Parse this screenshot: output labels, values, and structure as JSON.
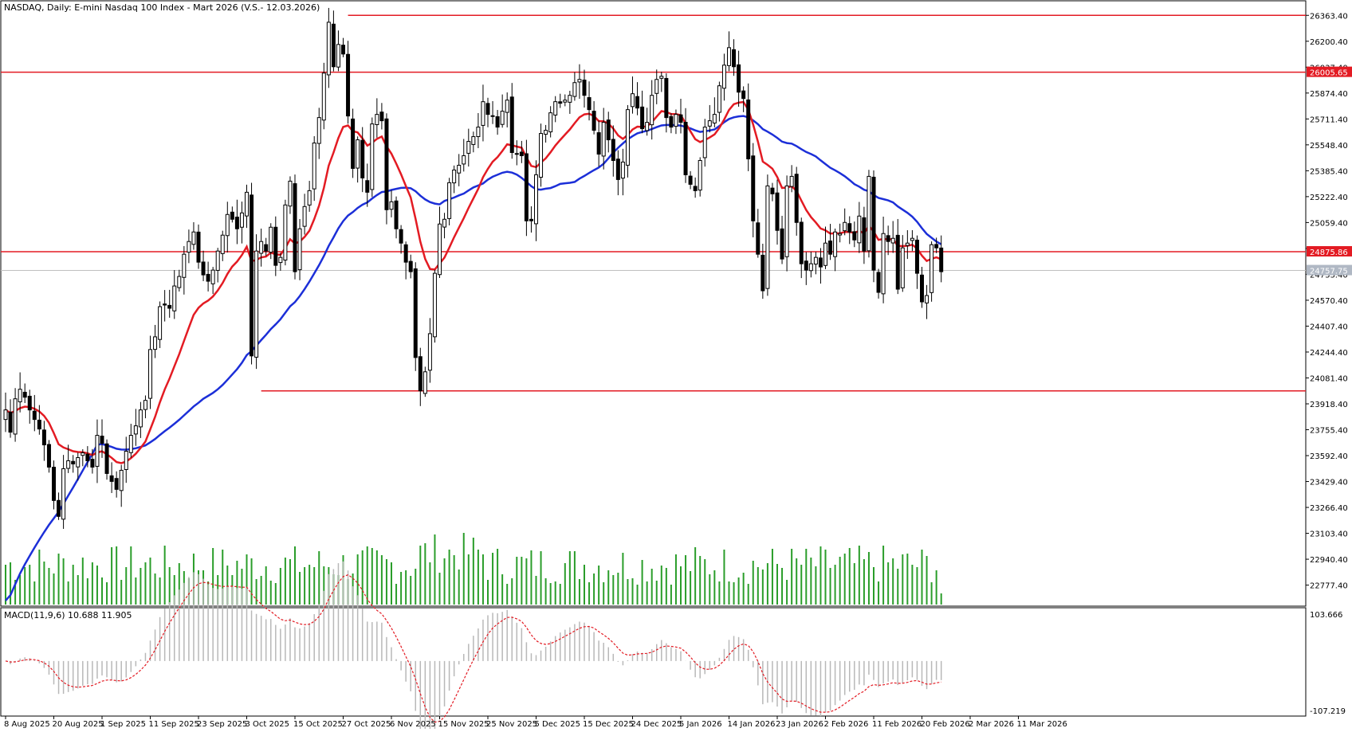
{
  "chart_data": {
    "type": "candlestick",
    "title": "NASDAQ, Daily:  E-mini Nasdaq 100 Index - Mart 2026 (V.S.- 12.03.2026)",
    "price_axis": {
      "range": [
        22650,
        26450
      ],
      "ticks": [
        "26363.40",
        "26200.40",
        "26037.40",
        "25874.40",
        "25711.40",
        "25548.40",
        "25385.40",
        "25222.40",
        "25059.40",
        "24896.40",
        "24733.40",
        "24570.40",
        "24407.40",
        "24244.40",
        "24081.40",
        "23918.40",
        "23755.40",
        "23592.40",
        "23429.40",
        "23266.40",
        "23103.40",
        "22940.40",
        "22777.40"
      ],
      "labels": [
        {
          "text": "26005.65",
          "value": 26005.65,
          "color": "#e31b23"
        },
        {
          "text": "24875.86",
          "value": 24875.86,
          "color": "#e31b23"
        },
        {
          "text": "24757.75",
          "value": 24757.75,
          "color": "#b0b8c4"
        }
      ]
    },
    "levels": [
      {
        "value": 26363.4,
        "from": "28 Oct 2025",
        "color": "#e31b23"
      },
      {
        "value": 26005.65,
        "from": "8 Aug 2025",
        "color": "#e31b23"
      },
      {
        "value": 24875.86,
        "from": "8 Aug 2025",
        "color": "#e31b23"
      },
      {
        "value": 24000,
        "from": "9 Oct 2025",
        "color": "#e31b23"
      },
      {
        "value": 24757.75,
        "from": "8 Aug 2025",
        "color": "#c0c0c0"
      }
    ],
    "date_ticks": [
      "8 Aug 2025",
      "20 Aug 2025",
      "1 Sep 2025",
      "11 Sep 2025",
      "23 Sep 2025",
      "3 Oct 2025",
      "15 Oct 2025",
      "27 Oct 2025",
      "6 Nov 2025",
      "15 Nov 2025",
      "25 Nov 2025",
      "5 Dec 2025",
      "15 Dec 2025",
      "24 Dec 2025",
      "5 Jan 2026",
      "14 Jan 2026",
      "23 Jan 2026",
      "2 Feb 2026",
      "11 Feb 2026",
      "20 Feb 2026",
      "2 Mar 2026",
      "11 Mar 2026"
    ],
    "date_tick_bar_index": [
      0,
      10,
      20,
      30,
      40,
      50,
      60,
      70,
      80,
      90,
      100,
      110,
      120,
      130,
      140,
      150,
      160,
      170,
      180,
      190,
      200,
      210
    ],
    "closes": [
      23880,
      23740,
      23950,
      24010,
      23960,
      23880,
      23820,
      23760,
      23660,
      23520,
      23310,
      23210,
      23510,
      23560,
      23540,
      23580,
      23610,
      23560,
      23520,
      23720,
      23670,
      23480,
      23430,
      23380,
      23500,
      23620,
      23720,
      23780,
      23880,
      23940,
      24260,
      24340,
      24530,
      24540,
      24520,
      24660,
      24720,
      24860,
      24940,
      25000,
      24810,
      24730,
      24690,
      24760,
      24880,
      24980,
      25110,
      25080,
      25020,
      25120,
      25250,
      24220,
      24880,
      24940,
      24880,
      25030,
      24790,
      24840,
      25170,
      25320,
      24750,
      25020,
      25160,
      25260,
      25560,
      25720,
      26000,
      26320,
      26040,
      26180,
      26120,
      25730,
      25400,
      25580,
      25340,
      25250,
      25680,
      25740,
      25700,
      25140,
      25190,
      25020,
      24930,
      24810,
      24750,
      24210,
      24000,
      24120,
      24360,
      24740,
      25050,
      25080,
      25310,
      25390,
      25420,
      25480,
      25570,
      25600,
      25660,
      25820,
      25740,
      25730,
      25660,
      25760,
      25830,
      25500,
      25490,
      25480,
      25070,
      25070,
      25360,
      25620,
      25640,
      25750,
      25820,
      25810,
      25830,
      25860,
      25940,
      25960,
      25860,
      25770,
      25640,
      25490,
      25690,
      25580,
      25450,
      25330,
      25440,
      25770,
      25870,
      25780,
      25650,
      25690,
      25860,
      25960,
      25980,
      25720,
      25660,
      25740,
      25690,
      25360,
      25300,
      25260,
      25450,
      25660,
      25700,
      25740,
      25920,
      26050,
      26160,
      26040,
      25880,
      25840,
      25460,
      25070,
      24860,
      24630,
      25290,
      25240,
      25010,
      24830,
      25290,
      25350,
      25060,
      24800,
      24760,
      24800,
      24840,
      24780,
      24930,
      24860,
      25000,
      24990,
      25060,
      25000,
      24950,
      25100,
      24880,
      25350,
      24760,
      24620,
      24990,
      24940,
      24960,
      24640,
      24900,
      24930,
      24960,
      24740,
      24560,
      24600,
      24920,
      24900,
      24750
    ],
    "ma_fast": {
      "name": "",
      "color": "#e31b23"
    },
    "ma_slow": {
      "name": "",
      "color": "#1c2fd8"
    },
    "volume": {
      "color": "#2a9d2a"
    },
    "macd": {
      "label": "MACD(11,9,6) 10.688 11.905",
      "range": [
        -107.219,
        103.666
      ],
      "tick_top": "103.666",
      "tick_bottom": "-107.219",
      "histogram_color": "#b8b8b8",
      "signal_color": "#e31b23"
    }
  }
}
